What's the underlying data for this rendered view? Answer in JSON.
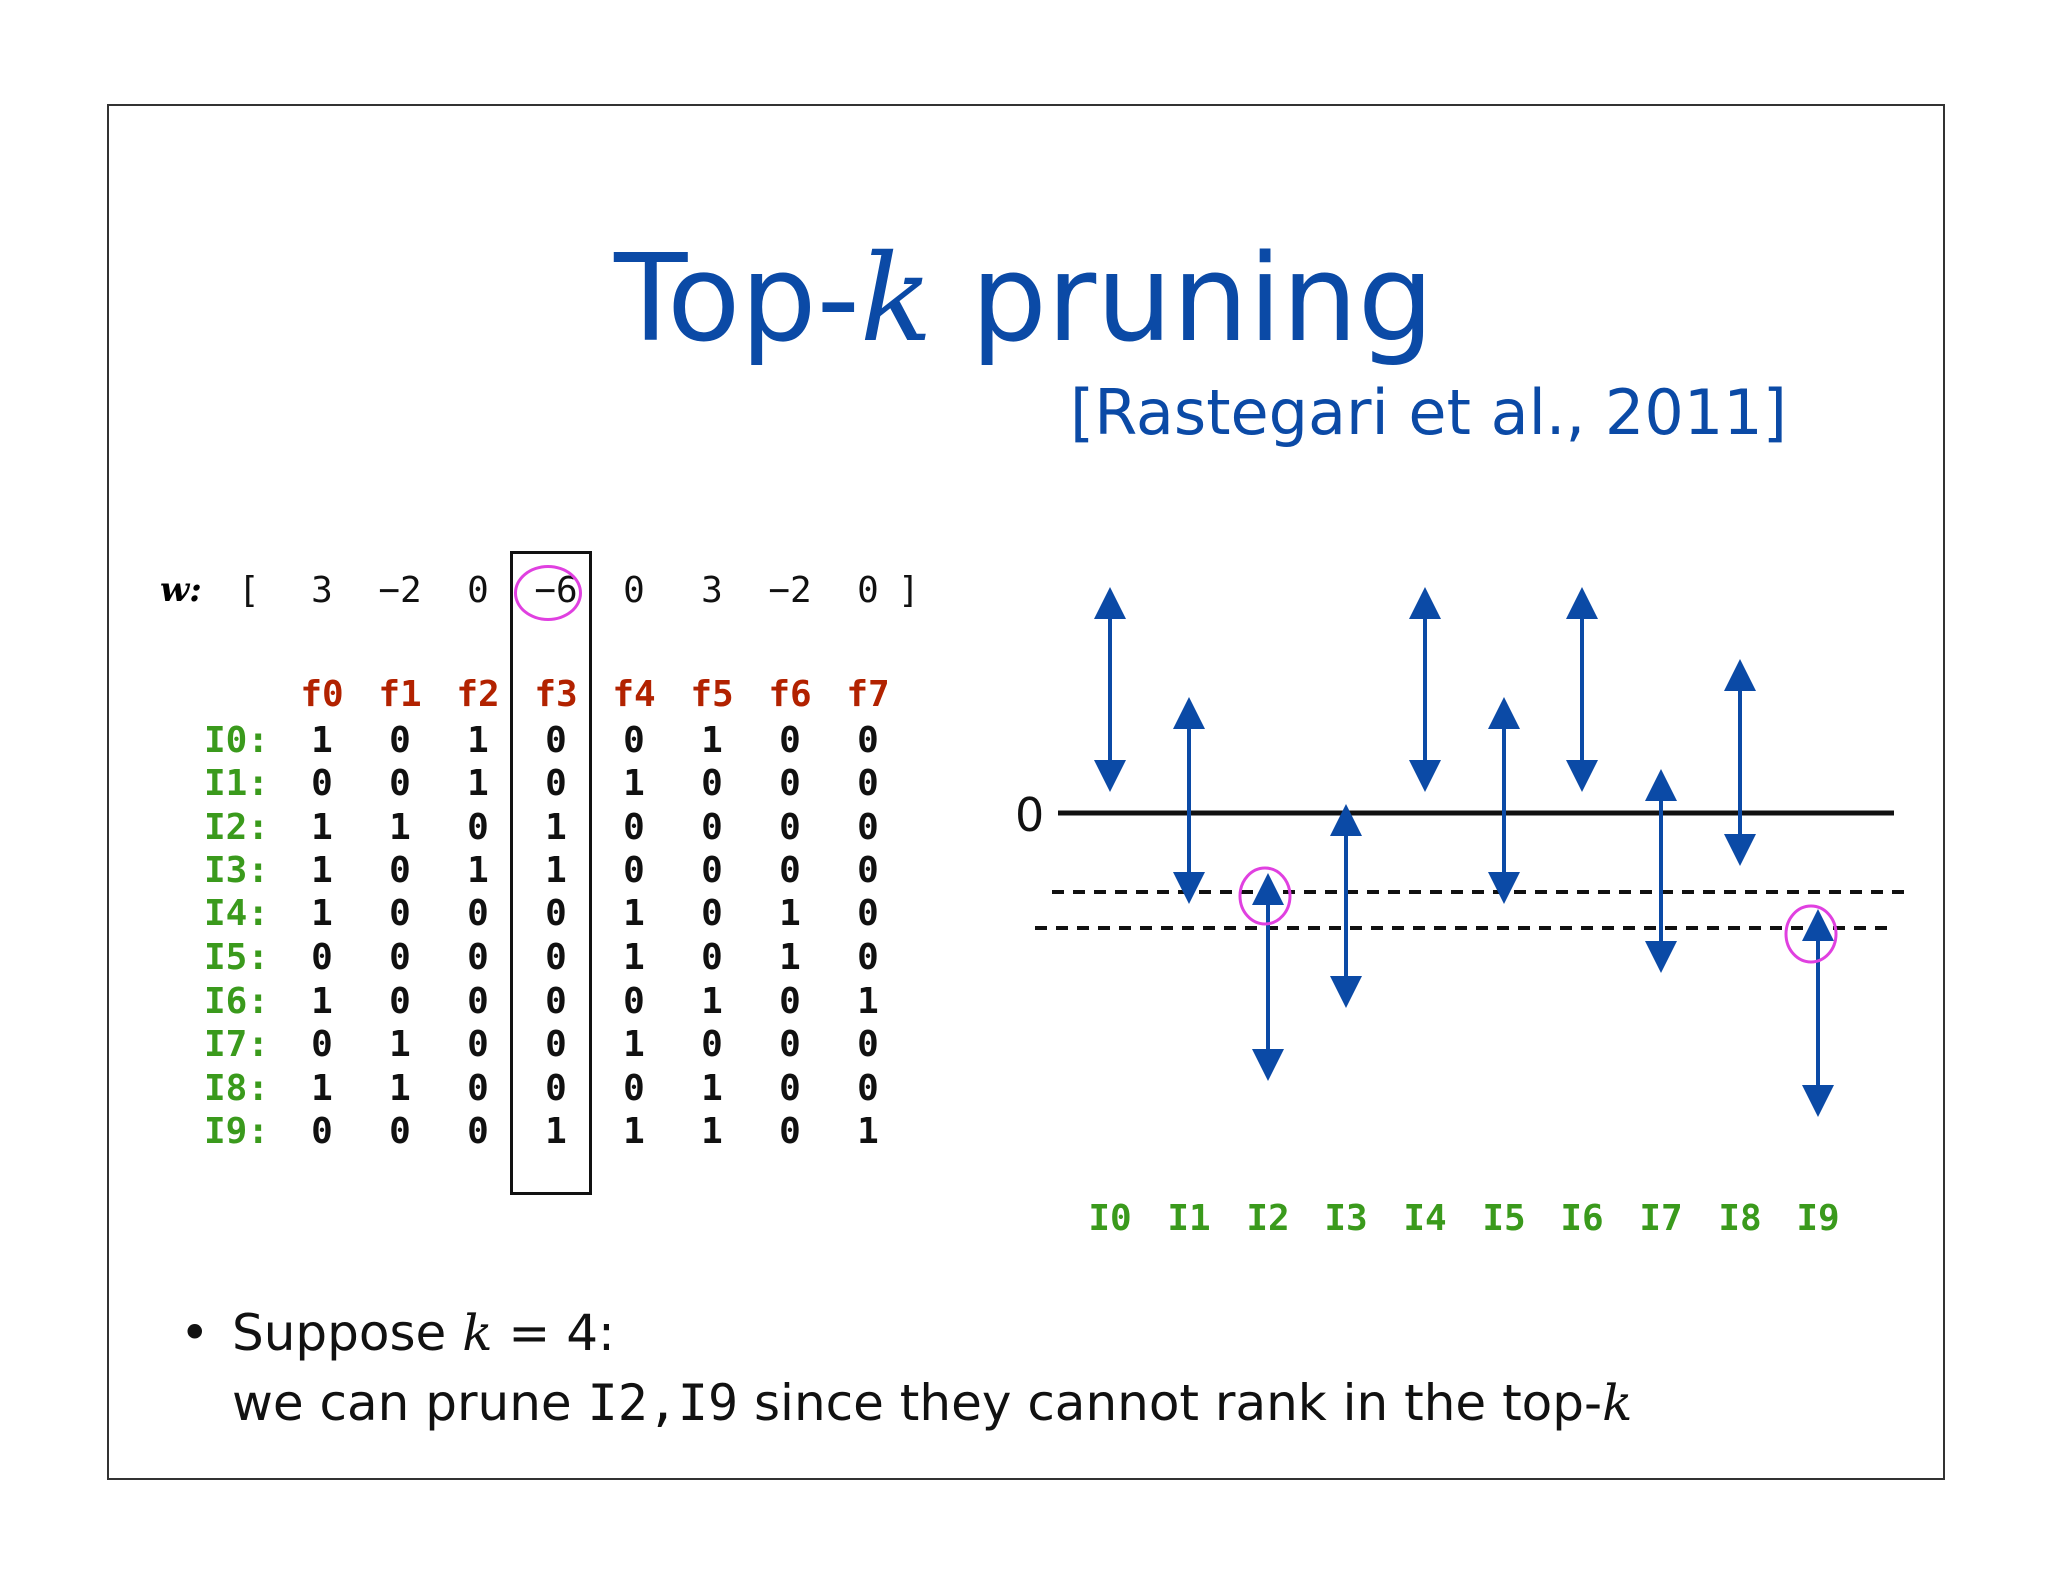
{
  "slide": {
    "title_prefix": "Top-",
    "title_k": "k",
    "title_suffix": " pruning",
    "citation": "[Rastegari et al., 2011]"
  },
  "weights": {
    "label": "w:",
    "open": "[",
    "close": "]",
    "values": [
      "3",
      "−2",
      "0",
      "−6",
      "0",
      "3",
      "−2",
      "0"
    ]
  },
  "matrix": {
    "features": [
      "f0",
      "f1",
      "f2",
      "f3",
      "f4",
      "f5",
      "f6",
      "f7"
    ],
    "rows": [
      {
        "label": "I0:",
        "values": [
          "1",
          "0",
          "1",
          "0",
          "0",
          "1",
          "0",
          "0"
        ]
      },
      {
        "label": "I1:",
        "values": [
          "0",
          "0",
          "1",
          "0",
          "1",
          "0",
          "0",
          "0"
        ]
      },
      {
        "label": "I2:",
        "values": [
          "1",
          "1",
          "0",
          "1",
          "0",
          "0",
          "0",
          "0"
        ]
      },
      {
        "label": "I3:",
        "values": [
          "1",
          "0",
          "1",
          "1",
          "0",
          "0",
          "0",
          "0"
        ]
      },
      {
        "label": "I4:",
        "values": [
          "1",
          "0",
          "0",
          "0",
          "1",
          "0",
          "1",
          "0"
        ]
      },
      {
        "label": "I5:",
        "values": [
          "0",
          "0",
          "0",
          "0",
          "1",
          "0",
          "1",
          "0"
        ]
      },
      {
        "label": "I6:",
        "values": [
          "1",
          "0",
          "0",
          "0",
          "0",
          "1",
          "0",
          "1"
        ]
      },
      {
        "label": "I7:",
        "values": [
          "0",
          "1",
          "0",
          "0",
          "1",
          "0",
          "0",
          "0"
        ]
      },
      {
        "label": "I8:",
        "values": [
          "1",
          "1",
          "0",
          "0",
          "0",
          "1",
          "0",
          "0"
        ]
      },
      {
        "label": "I9:",
        "values": [
          "0",
          "0",
          "0",
          "1",
          "1",
          "1",
          "0",
          "1"
        ]
      }
    ],
    "highlighted_feature": "f3"
  },
  "diagram": {
    "zero_label": "0",
    "items": [
      "I0",
      "I1",
      "I2",
      "I3",
      "I4",
      "I5",
      "I6",
      "I7",
      "I8",
      "I9"
    ],
    "arrow_color": "#0b4aa6",
    "pruned": [
      "I2",
      "I9"
    ]
  },
  "bullet": {
    "line1_prefix": "Suppose ",
    "line1_k": "k",
    "line1_suffix": " = 4:",
    "line2_prefix": "we can prune ",
    "line2_code": "I2,I9",
    "line2_middle": " since they cannot rank in the top-",
    "line2_k": "k"
  },
  "colors": {
    "title": "#0b4aa6",
    "feature_header": "#b22200",
    "item_label": "#3a9a1c",
    "highlight_ring": "#e040e0"
  }
}
